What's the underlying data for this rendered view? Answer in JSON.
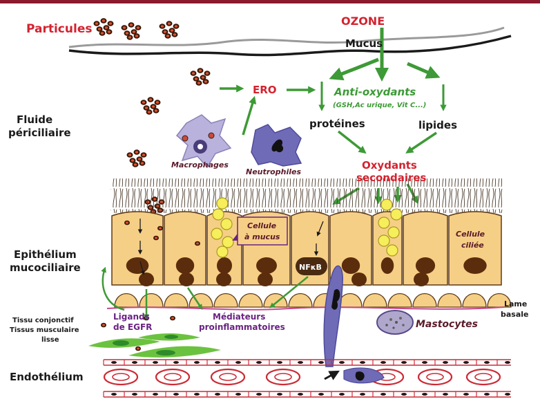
{
  "colors": {
    "top_bar": "#8b1a2f",
    "red": "#d4222f",
    "green": "#3d9a36",
    "purple": "#6a2283",
    "cell_fill": "#f6cf86",
    "cell_stroke": "#5b3a1a",
    "nucleus": "#5c2d0c",
    "mucus_yellow": "#f6ee5a",
    "endo_red": "#cc2b36",
    "neutrophil": "#6f6bb7",
    "macrophage": "#b9b2dc",
    "fibroblast": "#6bc23f"
  },
  "labels": {
    "particules": "Particules",
    "ozone": "OZONE",
    "mucus": "Mucus",
    "ero": "ERO",
    "antioxydants": "Anti-oxydants",
    "antioxydants_detail": "(GSH,Ac urique, Vit C...)",
    "proteines": "protéines",
    "lipides": "lipides",
    "fluide_line1": "Fluide",
    "fluide_line2": "périciliaire",
    "macrophages": "Macrophages",
    "neutrophiles": "Neutrophiles",
    "oxydants_line1": "Oxydants",
    "oxydants_line2": "secondaires",
    "cellule_mucus_line1": "Cellule",
    "cellule_mucus_line2": "à mucus",
    "cellule_ciliee_line1": "Cellule",
    "cellule_ciliee_line2": "ciliée",
    "nfkb": "NFκB",
    "epithelium_line1": "Epithélium",
    "epithelium_line2": "mucociliaire",
    "lame_line1": "Lame",
    "lame_line2": "basale",
    "ligands_line1": "Ligands",
    "ligands_line2": "de EGFR",
    "mediateurs_line1": "Médiateurs",
    "mediateurs_line2": "proinflammatoires",
    "mastocytes": "Mastocytes",
    "tissu_line1": "Tissu conjonctif",
    "tissu_line2": "Tissus musculaire",
    "tissu_line3": "lisse",
    "endothelium": "Endothélium"
  }
}
